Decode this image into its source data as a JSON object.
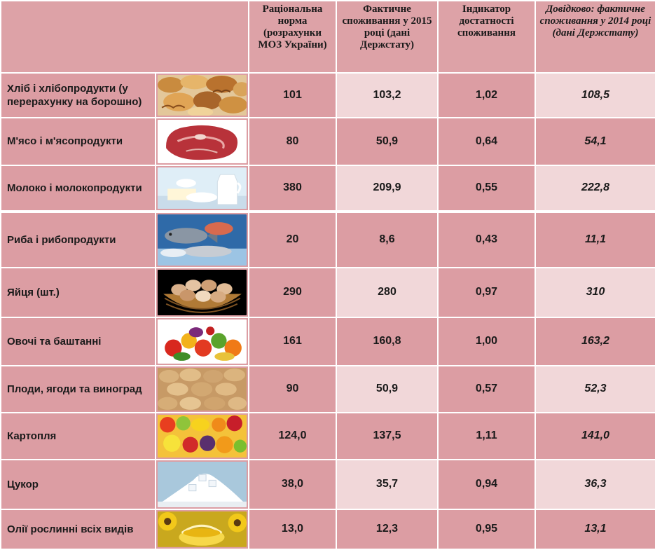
{
  "table": {
    "headers": {
      "norm": "Раціональна норма (розрахунки МОЗ України)",
      "actual": "Фактичне споживання у 2015 році (дані Держстату)",
      "indicator": "Індикатор достатності споживання",
      "reference": "Довідково: фактичне споживання у 2014 році (дані Держстату)"
    },
    "rows": [
      {
        "name": "Хліб і хлібопродукти (у перерахунку на борошно)",
        "image": "bread-image",
        "norm": "101",
        "actual": "103,2",
        "indicator": "1,02",
        "reference": "108,5"
      },
      {
        "name": "М'ясо і м'ясопродукти",
        "image": "meat-image",
        "norm": "80",
        "actual": "50,9",
        "indicator": "0,64",
        "reference": "54,1"
      },
      {
        "name": "Молоко і молокопродукти",
        "image": "milk-image",
        "norm": "380",
        "actual": "209,9",
        "indicator": "0,55",
        "reference": "222,8"
      },
      {
        "name": "Риба і рибопродукти",
        "image": "fish-image",
        "norm": "20",
        "actual": "8,6",
        "indicator": "0,43",
        "reference": "11,1"
      },
      {
        "name": "Яйця (шт.)",
        "image": "eggs-image",
        "norm": "290",
        "actual": "280",
        "indicator": "0,97",
        "reference": "310"
      },
      {
        "name": "Овочі та баштанні",
        "image": "vegetables-image",
        "norm": "161",
        "actual": "160,8",
        "indicator": "1,00",
        "reference": "163,2"
      },
      {
        "name": "Плоди, ягоди та виноград",
        "image": "potatoes-image",
        "norm": "90",
        "actual": "50,9",
        "indicator": "0,57",
        "reference": "52,3"
      },
      {
        "name": "Картопля",
        "image": "fruits-image",
        "norm": "124,0",
        "actual": "137,5",
        "indicator": "1,11",
        "reference": "141,0"
      },
      {
        "name": "Цукор",
        "image": "sugar-image",
        "norm": "38,0",
        "actual": "35,7",
        "indicator": "0,94",
        "reference": "36,3"
      },
      {
        "name": "Олії  рослинні всіх видів",
        "image": "oil-image",
        "norm": "13,0",
        "actual": "12,3",
        "indicator": "0,95",
        "reference": "13,1"
      }
    ]
  }
}
